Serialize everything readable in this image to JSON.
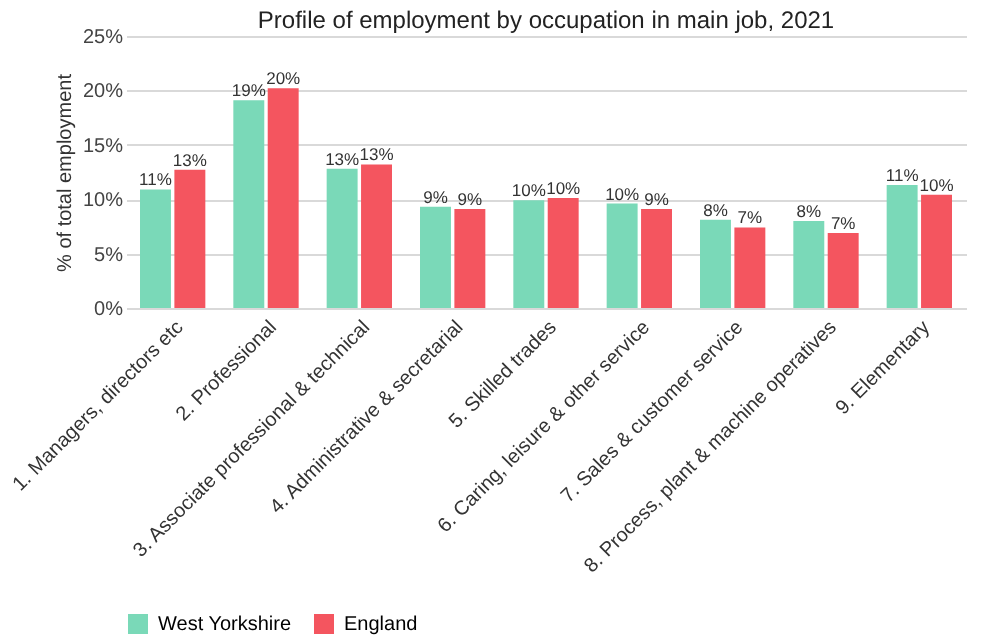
{
  "chart_data": {
    "type": "bar",
    "title": "Profile of employment by occupation in main job, 2021",
    "ylabel": "% of total employment",
    "categories": [
      "1. Managers, directors etc",
      "2. Professional",
      "3. Associate professional & technical",
      "4. Administrative & secretarial",
      "5. Skilled trades",
      "6. Caring, leisure & other service",
      "7. Sales & customer service",
      "8. Process, plant & machine operatives",
      "9. Elementary"
    ],
    "series": [
      {
        "name": "West Yorkshire",
        "color": "#7ad9b8",
        "values": [
          10.9,
          19.1,
          12.8,
          9.3,
          9.9,
          9.6,
          8.1,
          8.0,
          11.3
        ],
        "value_labels": [
          "11%",
          "19%",
          "13%",
          "9%",
          "10%",
          "10%",
          "8%",
          "8%",
          "11%"
        ]
      },
      {
        "name": "England",
        "color": "#f4555f",
        "values": [
          12.7,
          20.2,
          13.2,
          9.1,
          10.1,
          9.1,
          7.4,
          6.9,
          10.4
        ],
        "value_labels": [
          "13%",
          "20%",
          "13%",
          "9%",
          "10%",
          "9%",
          "7%",
          "7%",
          "10%"
        ]
      }
    ],
    "ylim": [
      0,
      25
    ],
    "yticks": [
      {
        "value": 0,
        "label": "0%"
      },
      {
        "value": 5,
        "label": "5%"
      },
      {
        "value": 10,
        "label": "10%"
      },
      {
        "value": 15,
        "label": "15%"
      },
      {
        "value": 20,
        "label": "20%"
      },
      {
        "value": 25,
        "label": "25%"
      }
    ],
    "grid": "y",
    "legend": "bottom"
  }
}
